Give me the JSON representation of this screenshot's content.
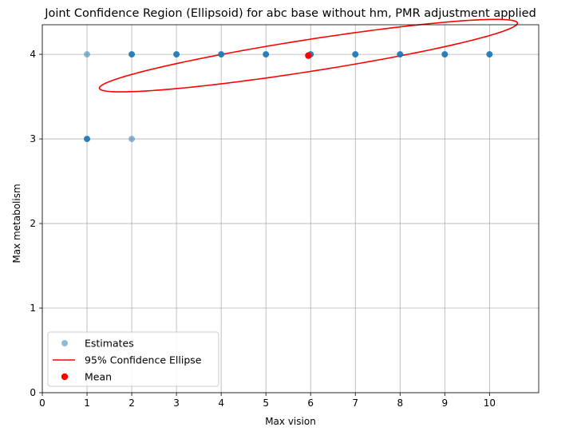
{
  "chart_data": {
    "type": "scatter",
    "title": "Joint Confidence Region (Ellipsoid) for abc base without hm, PMR adjustment applied",
    "xlabel": "Max vision",
    "ylabel": "Max metabolism",
    "xlim": [
      0,
      11.1
    ],
    "ylim": [
      0,
      4.35
    ],
    "xticks": [
      "0",
      "1",
      "2",
      "3",
      "4",
      "5",
      "6",
      "7",
      "8",
      "9",
      "10"
    ],
    "yticks": [
      "0",
      "1",
      "2",
      "3",
      "4"
    ],
    "grid": true,
    "legend_position": "lower-left",
    "series": [
      {
        "name": "Estimates",
        "kind": "scatter",
        "color": "#1f77b4",
        "points": [
          {
            "x": 1,
            "y": 4,
            "n": 1
          },
          {
            "x": 1,
            "y": 3,
            "n": 4
          },
          {
            "x": 2,
            "y": 3,
            "n": 1
          },
          {
            "x": 2,
            "y": 4,
            "n": 4
          },
          {
            "x": 3,
            "y": 4,
            "n": 4
          },
          {
            "x": 4,
            "y": 4,
            "n": 4
          },
          {
            "x": 5,
            "y": 4,
            "n": 4
          },
          {
            "x": 6,
            "y": 4,
            "n": 4
          },
          {
            "x": 7,
            "y": 4,
            "n": 4
          },
          {
            "x": 8,
            "y": 4,
            "n": 4
          },
          {
            "x": 9,
            "y": 4,
            "n": 4
          },
          {
            "x": 10,
            "y": 4,
            "n": 4
          }
        ]
      },
      {
        "name": "95% Confidence Ellipse",
        "kind": "ellipse",
        "color": "#ff0000",
        "center": [
          5.95,
          3.985
        ],
        "semi_major": 4.69,
        "semi_minor": 0.19,
        "angle_deg": 4.7
      },
      {
        "name": "Mean",
        "kind": "point",
        "color": "#ff0000",
        "x": 5.95,
        "y": 3.985
      }
    ]
  }
}
